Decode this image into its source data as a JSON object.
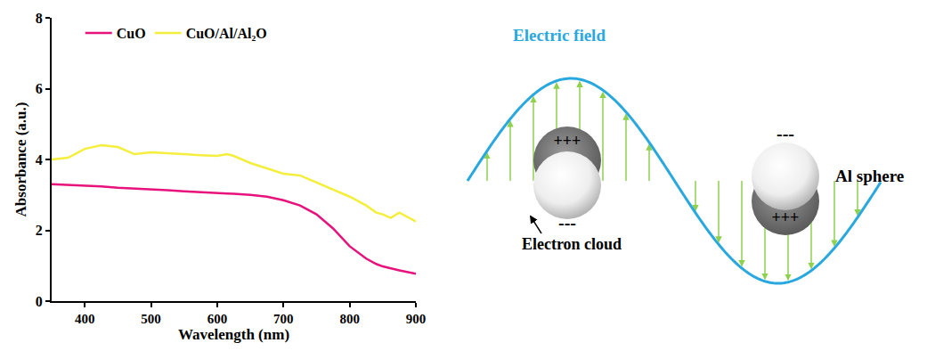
{
  "chart_data": {
    "type": "line",
    "x": [
      350,
      375,
      400,
      425,
      450,
      475,
      500,
      525,
      550,
      575,
      600,
      615,
      625,
      650,
      675,
      700,
      725,
      750,
      775,
      800,
      825,
      840,
      850,
      862,
      875,
      900
    ],
    "series": [
      {
        "name": "CuO",
        "color": "#e8127c",
        "values": [
          3.3,
          3.28,
          3.27,
          3.24,
          3.2,
          3.18,
          3.15,
          3.13,
          3.1,
          3.07,
          3.05,
          3.04,
          3.03,
          3.0,
          2.95,
          2.85,
          2.7,
          2.45,
          2.05,
          1.55,
          1.2,
          1.05,
          0.98,
          0.92,
          0.87,
          0.77
        ]
      },
      {
        "name": "CuO/Al/Al₂O",
        "color": "#f4ef3c",
        "values": [
          4.0,
          4.05,
          4.3,
          4.4,
          4.35,
          4.15,
          4.2,
          4.18,
          4.15,
          4.12,
          4.1,
          4.15,
          4.1,
          3.9,
          3.75,
          3.6,
          3.55,
          3.35,
          3.15,
          2.95,
          2.7,
          2.5,
          2.45,
          2.35,
          2.5,
          2.25
        ]
      }
    ],
    "x_label": "Wavelength (nm)",
    "y_label": "Absorbance (a.u.)",
    "xlim": [
      350,
      900
    ],
    "xticks": [
      400,
      500,
      600,
      700,
      800,
      900
    ],
    "ylim": [
      0,
      8
    ],
    "yticks": [
      0,
      2,
      4,
      6,
      8
    ],
    "legend": "top"
  },
  "diagram": {
    "field_label": "Electric field",
    "cloud_label": "Electron cloud",
    "sphere_label": "Al sphere",
    "positive": "+++",
    "negative": "---"
  }
}
